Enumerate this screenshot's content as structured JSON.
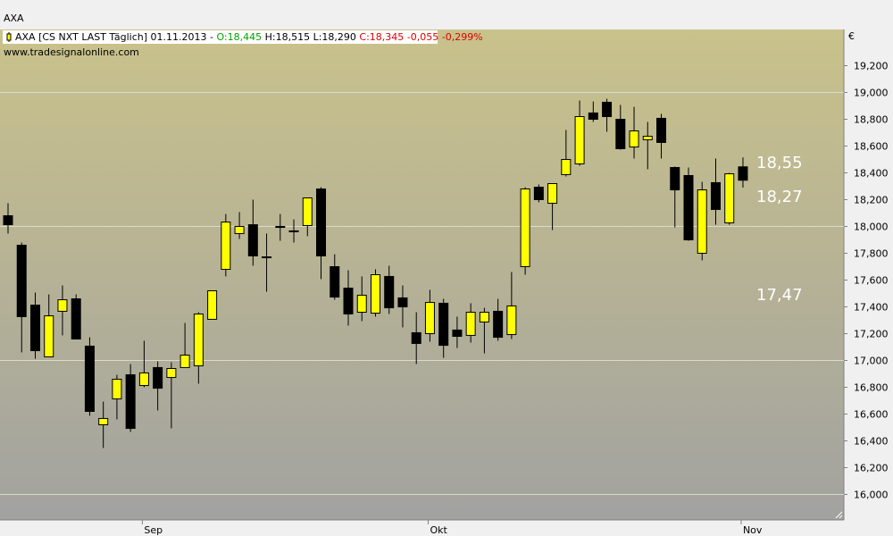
{
  "chart_data": {
    "type": "candlestick",
    "title": "AXA",
    "header": {
      "instrument": "AXA [CS NXT LAST Täglich] 01.11.2013 -",
      "open": "O:18,445",
      "high_low": "H:18,515 L:18,290",
      "close_change": "C:18,345 -0,055 -0,299%"
    },
    "source": "www.tradesignalonline.com",
    "unit": "€",
    "annotations": [
      "18,55",
      "18,27",
      "17,47"
    ],
    "categories": [
      null,
      null,
      null,
      null,
      null,
      null,
      null,
      null,
      null,
      null,
      "Sep",
      null,
      null,
      null,
      null,
      null,
      null,
      null,
      null,
      null,
      null,
      null,
      null,
      null,
      null,
      null,
      null,
      null,
      null,
      null,
      null,
      "Okt",
      null,
      null,
      null,
      null,
      null,
      null,
      null,
      null,
      null,
      null,
      null,
      null,
      null,
      null,
      null,
      null,
      null,
      null,
      null,
      null,
      null,
      null,
      "Nov"
    ],
    "open": [
      18.08,
      17.86,
      17.413,
      17.027,
      17.367,
      17.46,
      17.107,
      16.52,
      16.713,
      16.893,
      16.813,
      16.947,
      16.873,
      16.947,
      16.96,
      17.307,
      17.68,
      17.947,
      18.013,
      17.773,
      18.0,
      17.967,
      18.007,
      18.28,
      17.7,
      17.54,
      17.36,
      17.353,
      17.627,
      17.467,
      17.207,
      17.2,
      17.427,
      17.227,
      17.187,
      17.287,
      17.367,
      17.193,
      17.7,
      18.293,
      18.173,
      18.387,
      18.467,
      18.847,
      18.927,
      18.8,
      18.593,
      18.647,
      18.807,
      18.44,
      18.38,
      17.8,
      18.327,
      18.027,
      18.445
    ],
    "high": [
      18.173,
      17.88,
      17.507,
      17.493,
      17.56,
      17.493,
      17.173,
      16.693,
      16.893,
      16.973,
      17.147,
      16.993,
      16.987,
      17.28,
      17.36,
      17.52,
      18.093,
      18.107,
      18.2,
      17.947,
      18.093,
      18.053,
      18.213,
      18.293,
      17.793,
      17.673,
      17.627,
      17.68,
      17.707,
      17.56,
      17.36,
      17.527,
      17.46,
      17.327,
      17.427,
      17.393,
      17.46,
      17.66,
      18.293,
      18.313,
      18.32,
      18.72,
      18.94,
      18.933,
      18.953,
      18.907,
      18.893,
      18.78,
      18.84,
      18.447,
      18.44,
      18.333,
      18.507,
      18.4,
      18.515
    ],
    "low": [
      17.947,
      17.06,
      17.013,
      17.027,
      17.187,
      17.16,
      16.587,
      16.347,
      16.56,
      16.467,
      16.8,
      16.627,
      16.493,
      16.947,
      16.827,
      17.307,
      17.627,
      17.907,
      17.707,
      17.513,
      17.893,
      17.88,
      17.927,
      17.607,
      17.453,
      17.26,
      17.293,
      17.327,
      17.347,
      17.247,
      16.973,
      17.14,
      17.02,
      17.093,
      17.133,
      17.053,
      17.147,
      17.16,
      17.64,
      18.18,
      17.973,
      18.373,
      18.453,
      18.78,
      18.707,
      18.573,
      18.507,
      18.427,
      18.507,
      17.993,
      17.893,
      17.747,
      18.013,
      18.013,
      18.29
    ],
    "close": [
      18.013,
      17.327,
      17.073,
      17.333,
      17.453,
      17.16,
      16.62,
      16.567,
      16.86,
      16.493,
      16.907,
      16.793,
      16.94,
      17.04,
      17.347,
      17.52,
      18.033,
      18.0,
      17.78,
      17.767,
      17.993,
      17.96,
      18.213,
      17.78,
      17.473,
      17.347,
      17.487,
      17.64,
      17.393,
      17.4,
      17.127,
      17.433,
      17.113,
      17.18,
      17.36,
      17.36,
      17.173,
      17.407,
      18.28,
      18.2,
      18.32,
      18.5,
      18.82,
      18.8,
      18.82,
      18.58,
      18.713,
      18.673,
      18.627,
      18.273,
      17.9,
      18.273,
      18.127,
      18.393,
      18.345
    ],
    "up_color": "#ffff00",
    "down_color": "#000000",
    "ylim": [
      15.81,
      19.47
    ],
    "yticks": [
      {
        "value": 16,
        "label": "16,000"
      },
      {
        "value": 16.2,
        "label": "16,200"
      },
      {
        "value": 16.4,
        "label": "16,400"
      },
      {
        "value": 16.6,
        "label": "16,600"
      },
      {
        "value": 16.8,
        "label": "16,800"
      },
      {
        "value": 17,
        "label": "17,000"
      },
      {
        "value": 17.2,
        "label": "17,200"
      },
      {
        "value": 17.4,
        "label": "17,400"
      },
      {
        "value": 17.6,
        "label": "17,600"
      },
      {
        "value": 17.8,
        "label": "17,800"
      },
      {
        "value": 18,
        "label": "18,000"
      },
      {
        "value": 18.2,
        "label": "18,200"
      },
      {
        "value": 18.4,
        "label": "18,400"
      },
      {
        "value": 18.6,
        "label": "18,600"
      },
      {
        "value": 18.8,
        "label": "18,800"
      },
      {
        "value": 19,
        "label": "19,000"
      },
      {
        "value": 19.2,
        "label": "19,200"
      }
    ],
    "grid": true
  }
}
